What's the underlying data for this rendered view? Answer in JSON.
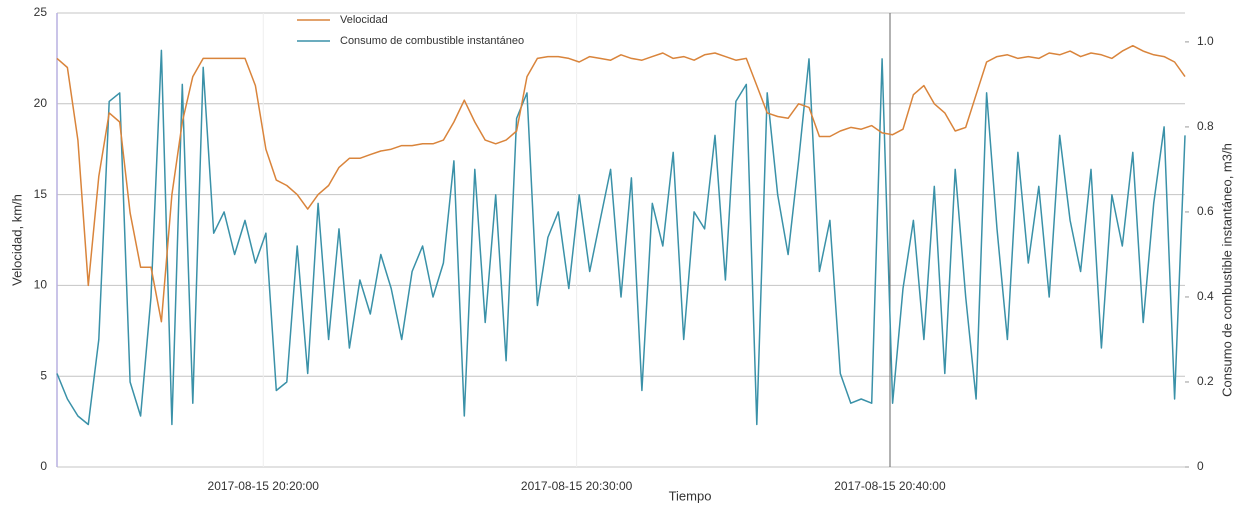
{
  "chart_data": {
    "type": "line",
    "xlabel": "Tiempo",
    "ylabel": "Velocidad, km/h",
    "y2label": "Consumo de combustible instantáneo, m3/h",
    "x": [
      "2017-08-15 20:13:25",
      "2017-08-15 20:13:45",
      "2017-08-15 20:14:05",
      "2017-08-15 20:14:25",
      "2017-08-15 20:14:45",
      "2017-08-15 20:15:05",
      "2017-08-15 20:15:25",
      "2017-08-15 20:15:45",
      "2017-08-15 20:16:05",
      "2017-08-15 20:16:25",
      "2017-08-15 20:16:45",
      "2017-08-15 20:17:05",
      "2017-08-15 20:17:25",
      "2017-08-15 20:17:45",
      "2017-08-15 20:18:05",
      "2017-08-15 20:18:25",
      "2017-08-15 20:18:45",
      "2017-08-15 20:19:05",
      "2017-08-15 20:19:25",
      "2017-08-15 20:19:45",
      "2017-08-15 20:20:05",
      "2017-08-15 20:20:25",
      "2017-08-15 20:20:45",
      "2017-08-15 20:21:05",
      "2017-08-15 20:21:25",
      "2017-08-15 20:21:45",
      "2017-08-15 20:22:05",
      "2017-08-15 20:22:25",
      "2017-08-15 20:22:45",
      "2017-08-15 20:23:05",
      "2017-08-15 20:23:25",
      "2017-08-15 20:23:45",
      "2017-08-15 20:24:05",
      "2017-08-15 20:24:25",
      "2017-08-15 20:24:45",
      "2017-08-15 20:25:05",
      "2017-08-15 20:25:25",
      "2017-08-15 20:25:45",
      "2017-08-15 20:26:05",
      "2017-08-15 20:26:25",
      "2017-08-15 20:26:45",
      "2017-08-15 20:27:05",
      "2017-08-15 20:27:25",
      "2017-08-15 20:27:45",
      "2017-08-15 20:28:05",
      "2017-08-15 20:28:25",
      "2017-08-15 20:28:45",
      "2017-08-15 20:29:05",
      "2017-08-15 20:29:25",
      "2017-08-15 20:29:45",
      "2017-08-15 20:30:05",
      "2017-08-15 20:30:25",
      "2017-08-15 20:30:45",
      "2017-08-15 20:31:05",
      "2017-08-15 20:31:25",
      "2017-08-15 20:31:45",
      "2017-08-15 20:32:05",
      "2017-08-15 20:32:25",
      "2017-08-15 20:32:45",
      "2017-08-15 20:33:05",
      "2017-08-15 20:33:25",
      "2017-08-15 20:33:45",
      "2017-08-15 20:34:05",
      "2017-08-15 20:34:25",
      "2017-08-15 20:34:45",
      "2017-08-15 20:35:05",
      "2017-08-15 20:35:25",
      "2017-08-15 20:35:45",
      "2017-08-15 20:36:05",
      "2017-08-15 20:36:25",
      "2017-08-15 20:36:45",
      "2017-08-15 20:37:05",
      "2017-08-15 20:37:25",
      "2017-08-15 20:37:45",
      "2017-08-15 20:38:05",
      "2017-08-15 20:38:25",
      "2017-08-15 20:38:45",
      "2017-08-15 20:39:05",
      "2017-08-15 20:39:25",
      "2017-08-15 20:39:45",
      "2017-08-15 20:40:05",
      "2017-08-15 20:40:25",
      "2017-08-15 20:40:45",
      "2017-08-15 20:41:05",
      "2017-08-15 20:41:25",
      "2017-08-15 20:41:45",
      "2017-08-15 20:42:05",
      "2017-08-15 20:42:25",
      "2017-08-15 20:42:45",
      "2017-08-15 20:43:05",
      "2017-08-15 20:43:25",
      "2017-08-15 20:43:45",
      "2017-08-15 20:44:05",
      "2017-08-15 20:44:25",
      "2017-08-15 20:44:45",
      "2017-08-15 20:45:05",
      "2017-08-15 20:45:25",
      "2017-08-15 20:45:45",
      "2017-08-15 20:46:05",
      "2017-08-15 20:46:25",
      "2017-08-15 20:46:45",
      "2017-08-15 20:47:05",
      "2017-08-15 20:47:25",
      "2017-08-15 20:47:45",
      "2017-08-15 20:48:05",
      "2017-08-15 20:48:25",
      "2017-08-15 20:48:45",
      "2017-08-15 20:49:05",
      "2017-08-15 20:49:25"
    ],
    "series": [
      {
        "name": "Velocidad",
        "color": "#d9843b",
        "axis": "y",
        "values": [
          22.5,
          22,
          18,
          10,
          16,
          19.5,
          19,
          14,
          11,
          11,
          8,
          15,
          19,
          21.5,
          22.5,
          22.5,
          22.5,
          22.5,
          22.5,
          21,
          17.5,
          15.8,
          15.5,
          15,
          14.2,
          15,
          15.5,
          16.5,
          17,
          17,
          17.2,
          17.4,
          17.5,
          17.7,
          17.7,
          17.8,
          17.8,
          18,
          19,
          20.2,
          19,
          18,
          17.8,
          18,
          18.5,
          21.5,
          22.5,
          22.6,
          22.6,
          22.5,
          22.3,
          22.6,
          22.5,
          22.4,
          22.7,
          22.5,
          22.4,
          22.6,
          22.8,
          22.5,
          22.6,
          22.4,
          22.7,
          22.8,
          22.6,
          22.4,
          22.5,
          21,
          19.5,
          19.3,
          19.2,
          20,
          19.8,
          18.2,
          18.2,
          18.5,
          18.7,
          18.6,
          18.8,
          18.4,
          18.3,
          18.6,
          20.5,
          21,
          20,
          19.5,
          18.5,
          18.7,
          20.5,
          22.3,
          22.6,
          22.7,
          22.5,
          22.6,
          22.5,
          22.8,
          22.7,
          22.9,
          22.6,
          22.8,
          22.7,
          22.5,
          22.9,
          23.2,
          22.9,
          22.7,
          22.6,
          22.3,
          21.5
        ]
      },
      {
        "name": "Consumo de combustible instantáneo",
        "color": "#3a91a8",
        "axis": "y2",
        "values": [
          0.22,
          0.16,
          0.12,
          0.1,
          0.3,
          0.86,
          0.88,
          0.2,
          0.12,
          0.4,
          0.98,
          0.1,
          0.9,
          0.15,
          0.94,
          0.55,
          0.6,
          0.5,
          0.58,
          0.48,
          0.55,
          0.18,
          0.2,
          0.52,
          0.22,
          0.62,
          0.3,
          0.56,
          0.28,
          0.44,
          0.36,
          0.5,
          0.42,
          0.3,
          0.46,
          0.52,
          0.4,
          0.48,
          0.72,
          0.12,
          0.7,
          0.34,
          0.64,
          0.25,
          0.82,
          0.88,
          0.38,
          0.54,
          0.6,
          0.42,
          0.64,
          0.46,
          0.58,
          0.7,
          0.4,
          0.68,
          0.18,
          0.62,
          0.52,
          0.74,
          0.3,
          0.6,
          0.56,
          0.78,
          0.44,
          0.86,
          0.9,
          0.1,
          0.88,
          0.64,
          0.5,
          0.72,
          0.96,
          0.46,
          0.58,
          0.22,
          0.15,
          0.16,
          0.15,
          0.96,
          0.15,
          0.42,
          0.58,
          0.3,
          0.66,
          0.22,
          0.7,
          0.4,
          0.16,
          0.88,
          0.56,
          0.3,
          0.74,
          0.48,
          0.66,
          0.4,
          0.78,
          0.58,
          0.46,
          0.7,
          0.28,
          0.64,
          0.52,
          0.74,
          0.34,
          0.62,
          0.8,
          0.16,
          0.78
        ]
      }
    ],
    "xlim": [
      "2017-08-15 20:13:25",
      "2017-08-15 20:49:25"
    ],
    "xticks": [
      "2017-08-15 20:20:00",
      "2017-08-15 20:30:00",
      "2017-08-15 20:40:00"
    ],
    "ylim": [
      0,
      25
    ],
    "yticks": [
      0,
      5,
      10,
      15,
      20,
      25
    ],
    "y2lim": [
      0,
      1.068
    ],
    "y2ticks": [
      0,
      0.2,
      0.4,
      0.6,
      0.8,
      {
        "value": 1,
        "label": "1.0"
      }
    ],
    "grid": true,
    "legend": "top"
  }
}
